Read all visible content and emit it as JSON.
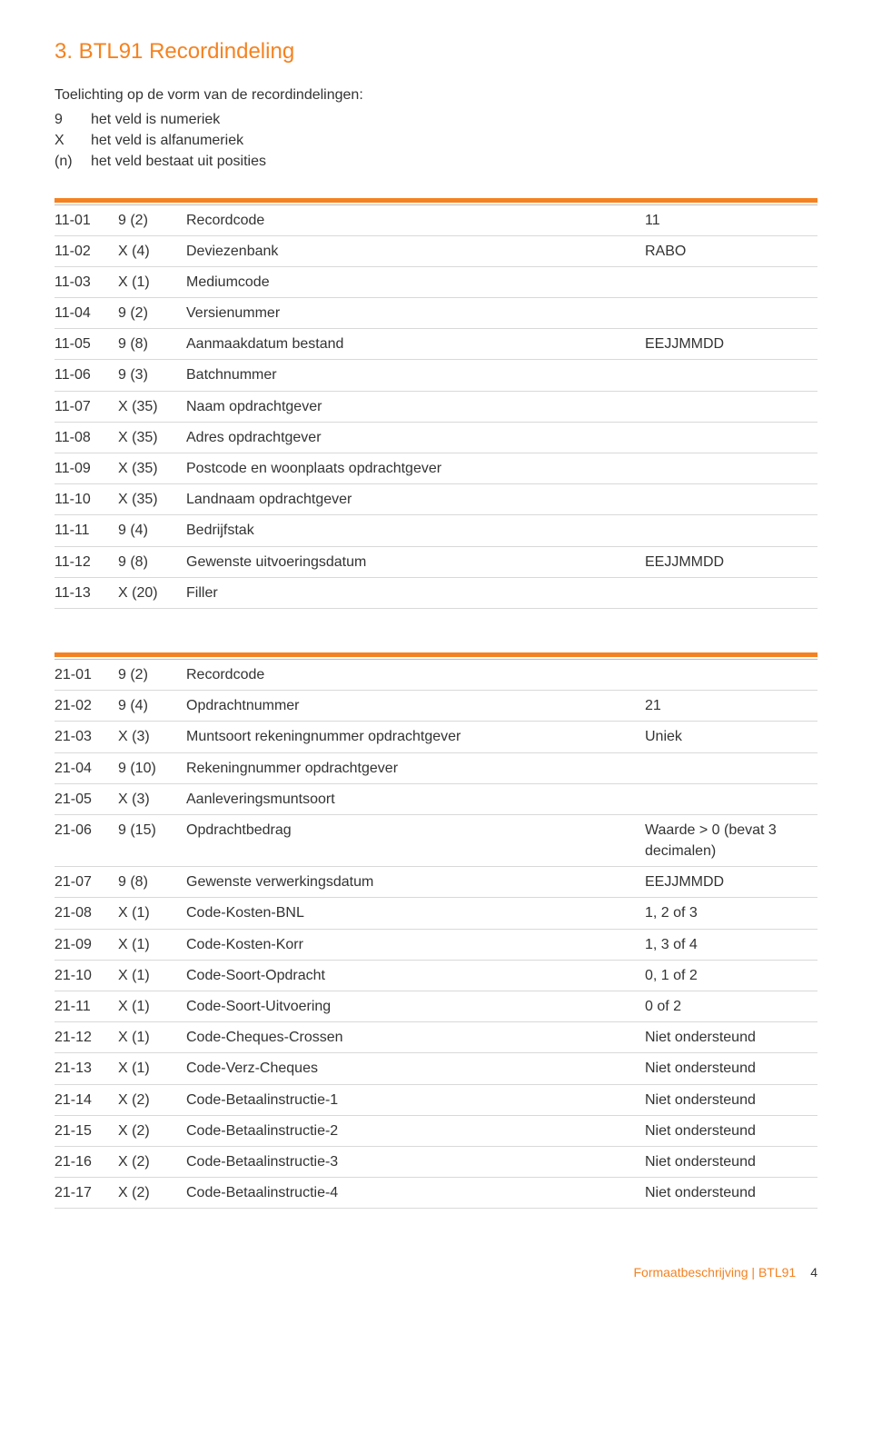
{
  "heading": "3.  BTL91 Recordindeling",
  "intro": {
    "lead": "Toelichting op de vorm van de recordindelingen:",
    "legend": [
      {
        "key": "9",
        "val": "het veld is numeriek"
      },
      {
        "key": "X",
        "val": "het veld is alfanumeriek"
      },
      {
        "key": "(n)",
        "val": "het veld bestaat uit   posities"
      }
    ]
  },
  "table1": {
    "rows": [
      {
        "a": "11-01",
        "b": "9  (2)",
        "c": "Recordcode",
        "d": "11"
      },
      {
        "a": "11-02",
        "b": "X (4)",
        "c": "Deviezenbank",
        "d": "RABO"
      },
      {
        "a": "11-03",
        "b": "X (1)",
        "c": "Mediumcode",
        "d": ""
      },
      {
        "a": "11-04",
        "b": "9  (2)",
        "c": "Versienummer",
        "d": ""
      },
      {
        "a": "11-05",
        "b": "9  (8)",
        "c": "Aanmaakdatum bestand",
        "d": "EEJJMMDD"
      },
      {
        "a": "11-06",
        "b": "9  (3)",
        "c": "Batchnummer",
        "d": ""
      },
      {
        "a": "11-07",
        "b": "X (35)",
        "c": "Naam opdrachtgever",
        "d": ""
      },
      {
        "a": "11-08",
        "b": "X (35)",
        "c": "Adres opdrachtgever",
        "d": ""
      },
      {
        "a": "11-09",
        "b": "X (35)",
        "c": "Postcode en woonplaats opdrachtgever",
        "d": ""
      },
      {
        "a": "11-10",
        "b": "X (35)",
        "c": "Landnaam opdrachtgever",
        "d": ""
      },
      {
        "a": "11-11",
        "b": "9  (4)",
        "c": "Bedrijfstak",
        "d": ""
      },
      {
        "a": "11-12",
        "b": "9  (8)",
        "c": "Gewenste uitvoeringsdatum",
        "d": "EEJJMMDD"
      },
      {
        "a": "11-13",
        "b": "X (20)",
        "c": "Filler",
        "d": ""
      }
    ]
  },
  "table2": {
    "rows": [
      {
        "a": "21-01",
        "b": "9  (2)",
        "c": "Recordcode",
        "d": ""
      },
      {
        "a": "21-02",
        "b": "9  (4)",
        "c": "Opdrachtnummer",
        "d": "21"
      },
      {
        "a": "21-03",
        "b": "X  (3)",
        "c": "Muntsoort rekeningnummer opdrachtgever",
        "d": "Uniek"
      },
      {
        "a": "21-04",
        "b": "9  (10)",
        "c": "Rekeningnummer opdrachtgever",
        "d": ""
      },
      {
        "a": "21-05",
        "b": "X  (3)",
        "c": "Aanleveringsmuntsoort",
        "d": ""
      },
      {
        "a": "21-06",
        "b": "9 (15)",
        "c": "Opdrachtbedrag",
        "d": "Waarde > 0 (bevat 3 decimalen)"
      },
      {
        "a": "21-07",
        "b": "9  (8)",
        "c": "Gewenste verwerkingsdatum",
        "d": "EEJJMMDD"
      },
      {
        "a": "21-08",
        "b": "X  (1)",
        "c": "Code-Kosten-BNL",
        "d": "1, 2 of 3"
      },
      {
        "a": "21-09",
        "b": "X  (1)",
        "c": "Code-Kosten-Korr",
        "d": "1, 3 of 4"
      },
      {
        "a": "21-10",
        "b": "X  (1)",
        "c": "Code-Soort-Opdracht",
        "d": "0, 1 of 2"
      },
      {
        "a": "21-11",
        "b": "X  (1)",
        "c": "Code-Soort-Uitvoering",
        "d": "0 of 2"
      },
      {
        "a": "21-12",
        "b": "X  (1)",
        "c": "Code-Cheques-Crossen",
        "d": "Niet ondersteund"
      },
      {
        "a": "21-13",
        "b": "X  (1)",
        "c": "Code-Verz-Cheques",
        "d": "Niet ondersteund"
      },
      {
        "a": "21-14",
        "b": "X  (2)",
        "c": "Code-Betaalinstructie-1",
        "d": "Niet ondersteund"
      },
      {
        "a": "21-15",
        "b": "X  (2)",
        "c": "Code-Betaalinstructie-2",
        "d": "Niet ondersteund"
      },
      {
        "a": "21-16",
        "b": "X  (2)",
        "c": "Code-Betaalinstructie-3",
        "d": "Niet ondersteund"
      },
      {
        "a": "21-17",
        "b": "X  (2)",
        "c": "Code-Betaalinstructie-4",
        "d": "Niet ondersteund"
      }
    ]
  },
  "footer": {
    "text": "Formaatbeschrijving | BTL91",
    "page": "4"
  },
  "colors": {
    "accent": "#f58220",
    "text": "#333333",
    "rule": "#d9d9d9"
  }
}
